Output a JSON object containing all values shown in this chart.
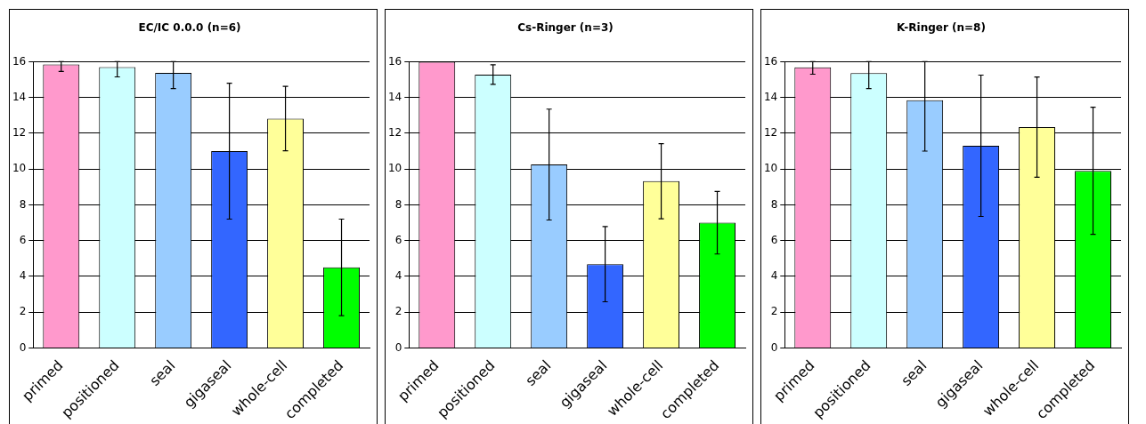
{
  "chart_data": [
    {
      "type": "bar",
      "title": "EC/IC 0.0.0 (n=6)",
      "categories": [
        "primed",
        "positioned",
        "seal",
        "gigaseal",
        "whole-cell",
        "completed"
      ],
      "values": [
        15.85,
        15.7,
        15.37,
        11.0,
        12.82,
        4.5
      ],
      "colors": [
        "#ff99cc",
        "#ccffff",
        "#99ccff",
        "#3366ff",
        "#ffff99",
        "#00ff00"
      ],
      "errors": [
        [
          15.45,
          16
        ],
        [
          15.15,
          16
        ],
        [
          14.5,
          16
        ],
        3.8,
        1.8,
        2.7
      ],
      "ylim": [
        0,
        16
      ],
      "yticks": [
        0,
        2,
        4,
        6,
        8,
        10,
        12,
        14,
        16
      ],
      "grid": "y"
    },
    {
      "type": "bar",
      "title": "Cs-Ringer (n=3)",
      "categories": [
        "primed",
        "positioned",
        "seal",
        "gigaseal",
        "whole-cell",
        "completed"
      ],
      "values": [
        16,
        15.28,
        10.25,
        4.68,
        9.32,
        7.0
      ],
      "colors": [
        "#ff99cc",
        "#ccffff",
        "#99ccff",
        "#3366ff",
        "#ffff99",
        "#00ff00"
      ],
      "errors": [
        null,
        0.55,
        3.1,
        2.1,
        2.1,
        1.75
      ],
      "ylim": [
        0,
        16
      ],
      "yticks": [
        0,
        2,
        4,
        6,
        8,
        10,
        12,
        14,
        16
      ],
      "grid": "y"
    },
    {
      "type": "bar",
      "title": "K-Ringer (n=8)",
      "categories": [
        "primed",
        "positioned",
        "seal",
        "gigaseal",
        "whole-cell",
        "completed"
      ],
      "values": [
        15.69,
        15.36,
        13.85,
        11.3,
        12.34,
        9.9
      ],
      "colors": [
        "#ff99cc",
        "#ccffff",
        "#99ccff",
        "#3366ff",
        "#ffff99",
        "#00ff00"
      ],
      "errors": [
        [
          15.3,
          16
        ],
        [
          14.5,
          16
        ],
        [
          11.0,
          16
        ],
        3.95,
        2.8,
        3.55
      ],
      "ylim": [
        0,
        16
      ],
      "yticks": [
        0,
        2,
        4,
        6,
        8,
        10,
        12,
        14,
        16
      ],
      "grid": "y"
    }
  ]
}
